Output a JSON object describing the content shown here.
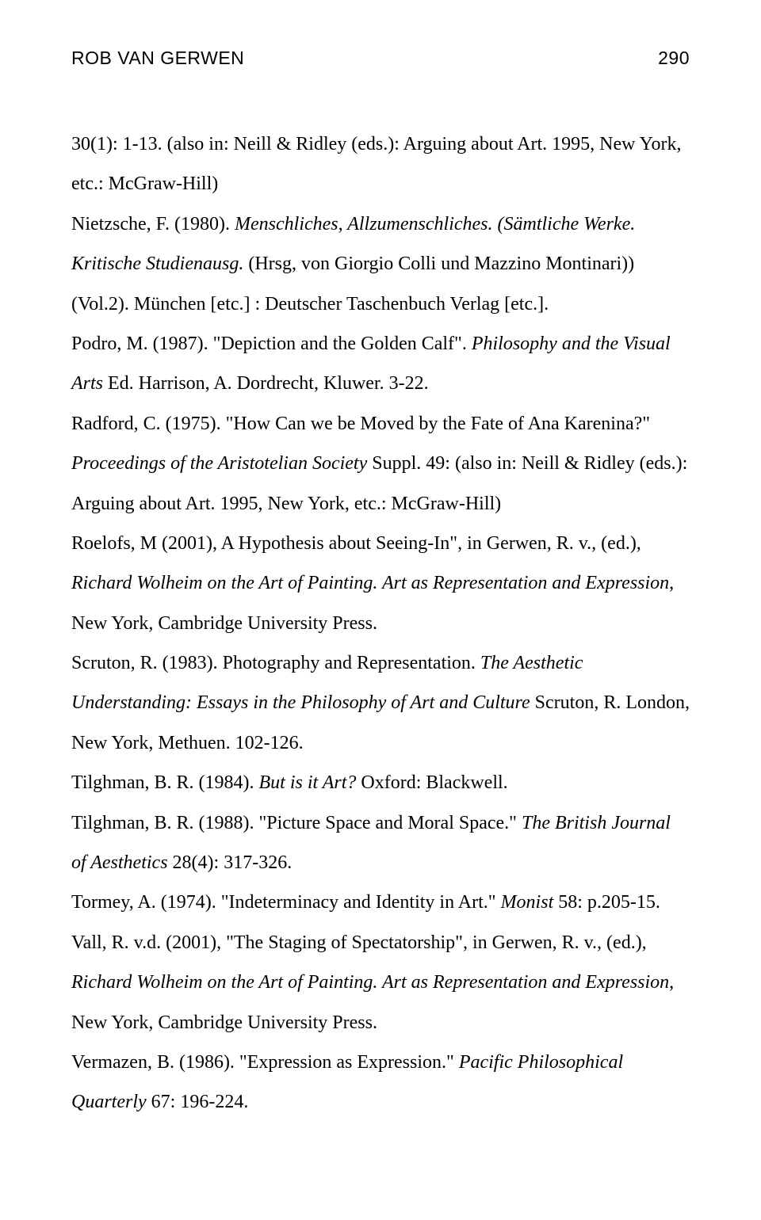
{
  "header": {
    "author": "ROB VAN GERWEN",
    "page_number": "290"
  },
  "references": {
    "r1_a": "30(1): 1-13. (also in: Neill & Ridley (eds.): Arguing about Art. 1995, New York, etc.: McGraw-Hill)",
    "r2_a": "Nietzsche, F. (1980). ",
    "r2_b": "Menschliches, Allzumenschliches. (Sämtliche Werke. Kritische Studienausg.",
    "r2_c": " (Hrsg, von Giorgio Colli und Mazzino Montinari)) (Vol.2). München [etc.] : Deutscher Taschenbuch Verlag [etc.].",
    "r3_a": "Podro, M. (1987). \"Depiction and the Golden Calf\". ",
    "r3_b": "Philosophy and the Visual Arts",
    "r3_c": " Ed. Harrison, A. Dordrecht, Kluwer. 3-22.",
    "r4_a": "Radford, C. (1975). \"How Can we be Moved by the Fate of Ana Karenina?\" ",
    "r4_b": "Proceedings of the Aristotelian Society",
    "r4_c": " Suppl. 49: (also in: Neill & Ridley (eds.): Arguing about Art. 1995, New York, etc.: McGraw-Hill)",
    "r5_a": "Roelofs, M (2001), A Hypothesis about Seeing-In\", in Gerwen, R. v., (ed.), ",
    "r5_b": "Richard Wolheim on the Art of Painting. Art as Representation and Expression",
    "r5_c": ", New York, Cambridge University Press.",
    "r6_a": "Scruton, R. (1983). Photography and Representation. ",
    "r6_b": "The Aesthetic Understanding: Essays in the Philosophy of Art and Culture",
    "r6_c": " Scruton, R. London, New York, Methuen. 102-126.",
    "r7_a": "Tilghman, B. R. (1984). ",
    "r7_b": "But is it Art?",
    "r7_c": " Oxford: Blackwell.",
    "r8_a": "Tilghman, B. R. (1988). \"Picture Space and Moral Space.\" ",
    "r8_b": "The British Journal of Aesthetics",
    "r8_c": " 28(4): 317-326.",
    "r9_a": "Tormey, A. (1974). \"Indeterminacy and Identity in Art.\" ",
    "r9_b": "Monist",
    "r9_c": " 58: p.205-15.",
    "r10_a": "Vall, R. v.d. (2001), \"The Staging of Spectatorship\", in Gerwen, R. v., (ed.), ",
    "r10_b": "Richard Wolheim on the Art of Painting. Art as Representation and Expression",
    "r10_c": ", New York, Cambridge University Press.",
    "r11_a": "Vermazen, B. (1986). \"Expression as Expression.\" ",
    "r11_b": "Pacific Philosophical Quarterly",
    "r11_c": " 67: 196-224."
  }
}
